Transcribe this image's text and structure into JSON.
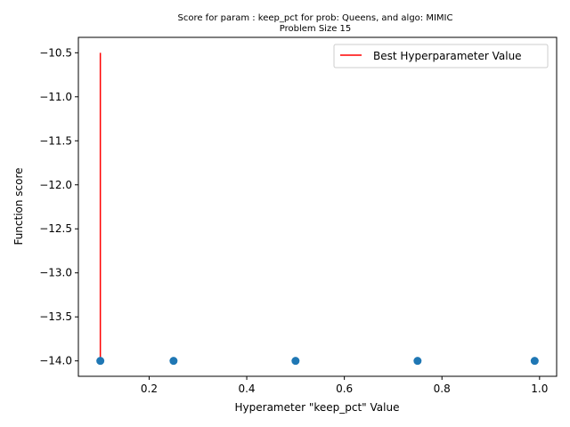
{
  "chart_data": {
    "type": "scatter",
    "title": "Score for param : keep_pct for prob: Queens, and algo: MIMIC",
    "subtitle": "Problem Size 15",
    "xlabel": "Hyperameter \"keep_pct\" Value",
    "ylabel": "Function score",
    "xlim": [
      0.055,
      1.035
    ],
    "ylim": [
      -14.175,
      -10.325
    ],
    "x_ticks": [
      0.2,
      0.4,
      0.6,
      0.8,
      1.0
    ],
    "x_tick_labels": [
      "0.2",
      "0.4",
      "0.6",
      "0.8",
      "1.0"
    ],
    "y_ticks": [
      -14.0,
      -13.5,
      -13.0,
      -12.5,
      -12.0,
      -11.5,
      -11.0,
      -10.5
    ],
    "y_tick_labels": [
      "−14.0",
      "−13.5",
      "−13.0",
      "−12.5",
      "−12.0",
      "−11.5",
      "−11.0",
      "−10.5"
    ],
    "grid": false,
    "legend_position": "top-right",
    "series": [
      {
        "type": "scatter",
        "color": "#1f77b4",
        "x": [
          0.1,
          0.25,
          0.5,
          0.75,
          0.99
        ],
        "y": [
          -14.0,
          -14.0,
          -14.0,
          -14.0,
          -14.0
        ]
      }
    ],
    "best_line": {
      "name": "Best Hyperparameter Value",
      "color": "#ff0000",
      "x": 0.1,
      "y_from": -14.0,
      "y_to": -10.5
    }
  }
}
